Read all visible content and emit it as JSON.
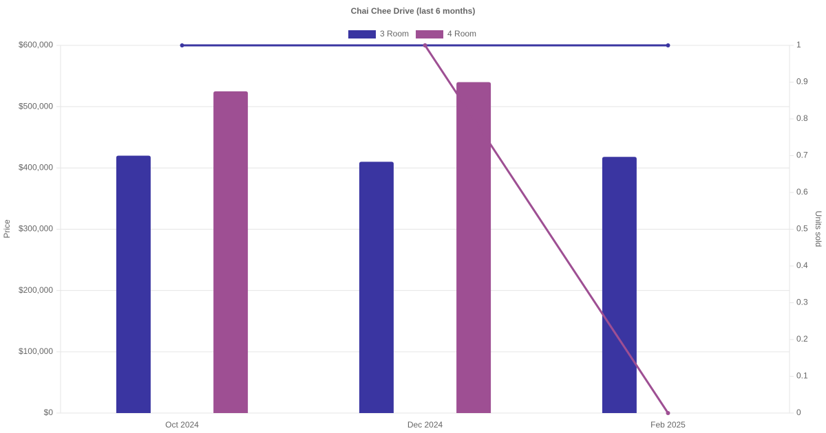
{
  "chart_data": {
    "type": "bar",
    "title": "Chai Chee Drive (last 6 months)",
    "y_label": "Price",
    "y2_label": "Units sold",
    "categories": [
      "Oct 2024",
      "Dec 2024",
      "Feb 2025"
    ],
    "series": [
      {
        "name": "3 Room",
        "color": "#3a35a1",
        "values": [
          420000,
          410000,
          418000
        ],
        "units": [
          1,
          1,
          1
        ]
      },
      {
        "name": "4 Room",
        "color": "#9e4f93",
        "values": [
          525000,
          540000,
          null
        ],
        "units": [
          null,
          1,
          0
        ]
      }
    ],
    "ylim": [
      0,
      600000
    ],
    "yticks": [
      {
        "value": 0,
        "label": "$0"
      },
      {
        "value": 100000,
        "label": "$100,000"
      },
      {
        "value": 200000,
        "label": "$200,000"
      },
      {
        "value": 300000,
        "label": "$300,000"
      },
      {
        "value": 400000,
        "label": "$400,000"
      },
      {
        "value": 500000,
        "label": "$500,000"
      },
      {
        "value": 600000,
        "label": "$600,000"
      }
    ],
    "y2lim": [
      0,
      1
    ],
    "y2ticks": [
      0,
      0.1,
      0.2,
      0.3,
      0.4,
      0.5,
      0.6,
      0.7,
      0.8,
      0.9,
      1
    ],
    "grid": true,
    "legend": "top"
  }
}
